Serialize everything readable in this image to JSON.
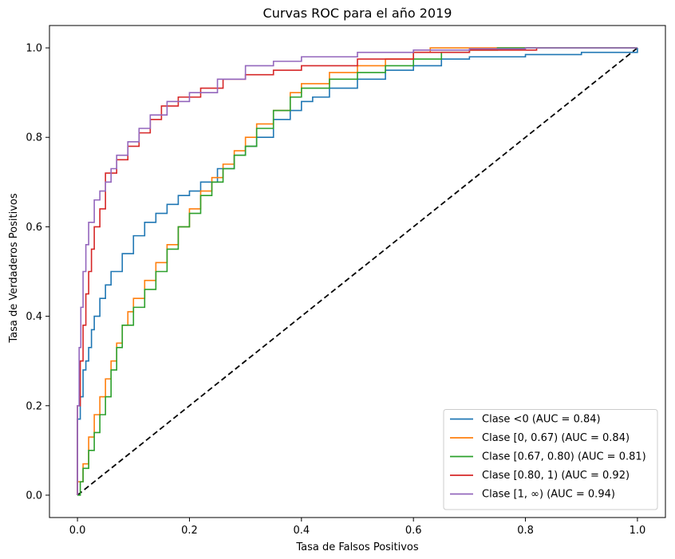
{
  "chart_data": {
    "type": "line",
    "title": "Curvas ROC para el año 2019",
    "xlabel": "Tasa de Falsos Positivos",
    "ylabel": "Tasa de Verdaderos Positivos",
    "xlim": [
      -0.05,
      1.05
    ],
    "ylim": [
      -0.05,
      1.05
    ],
    "xticks": [
      0.0,
      0.2,
      0.4,
      0.6,
      0.8,
      1.0
    ],
    "yticks": [
      0.0,
      0.2,
      0.4,
      0.6,
      0.8,
      1.0
    ],
    "xtick_labels": [
      "0.0",
      "0.2",
      "0.4",
      "0.6",
      "0.8",
      "1.0"
    ],
    "ytick_labels": [
      "0.0",
      "0.2",
      "0.4",
      "0.6",
      "0.8",
      "1.0"
    ],
    "grid": false,
    "legend_position": "lower-right",
    "diagonal": {
      "x": [
        0,
        1
      ],
      "y": [
        0,
        1
      ],
      "color": "#000000",
      "style": "dashed"
    },
    "series": [
      {
        "name": "Clase <0 (AUC = 0.84)",
        "color": "#1f77b4",
        "points": [
          [
            0,
            0
          ],
          [
            0,
            0.17
          ],
          [
            0.005,
            0.22
          ],
          [
            0.01,
            0.28
          ],
          [
            0.015,
            0.3
          ],
          [
            0.02,
            0.33
          ],
          [
            0.025,
            0.37
          ],
          [
            0.03,
            0.4
          ],
          [
            0.04,
            0.44
          ],
          [
            0.05,
            0.47
          ],
          [
            0.06,
            0.5
          ],
          [
            0.08,
            0.54
          ],
          [
            0.1,
            0.58
          ],
          [
            0.12,
            0.61
          ],
          [
            0.14,
            0.63
          ],
          [
            0.16,
            0.65
          ],
          [
            0.18,
            0.67
          ],
          [
            0.2,
            0.68
          ],
          [
            0.22,
            0.7
          ],
          [
            0.25,
            0.73
          ],
          [
            0.28,
            0.76
          ],
          [
            0.3,
            0.78
          ],
          [
            0.32,
            0.8
          ],
          [
            0.35,
            0.84
          ],
          [
            0.38,
            0.86
          ],
          [
            0.4,
            0.88
          ],
          [
            0.42,
            0.89
          ],
          [
            0.45,
            0.91
          ],
          [
            0.5,
            0.93
          ],
          [
            0.55,
            0.95
          ],
          [
            0.6,
            0.96
          ],
          [
            0.65,
            0.975
          ],
          [
            0.7,
            0.98
          ],
          [
            0.8,
            0.985
          ],
          [
            0.9,
            0.99
          ],
          [
            1,
            1
          ]
        ]
      },
      {
        "name": "Clase [0, 0.67) (AUC = 0.84)",
        "color": "#ff7f0e",
        "points": [
          [
            0,
            0
          ],
          [
            0,
            0.03
          ],
          [
            0.01,
            0.07
          ],
          [
            0.02,
            0.13
          ],
          [
            0.03,
            0.18
          ],
          [
            0.04,
            0.22
          ],
          [
            0.05,
            0.26
          ],
          [
            0.06,
            0.3
          ],
          [
            0.07,
            0.34
          ],
          [
            0.08,
            0.38
          ],
          [
            0.09,
            0.41
          ],
          [
            0.1,
            0.44
          ],
          [
            0.12,
            0.48
          ],
          [
            0.14,
            0.52
          ],
          [
            0.16,
            0.56
          ],
          [
            0.18,
            0.6
          ],
          [
            0.2,
            0.64
          ],
          [
            0.22,
            0.68
          ],
          [
            0.24,
            0.71
          ],
          [
            0.26,
            0.74
          ],
          [
            0.28,
            0.77
          ],
          [
            0.3,
            0.8
          ],
          [
            0.32,
            0.83
          ],
          [
            0.35,
            0.86
          ],
          [
            0.38,
            0.9
          ],
          [
            0.4,
            0.92
          ],
          [
            0.45,
            0.945
          ],
          [
            0.5,
            0.96
          ],
          [
            0.55,
            0.975
          ],
          [
            0.6,
            0.99
          ],
          [
            0.63,
            1
          ],
          [
            1,
            1
          ]
        ]
      },
      {
        "name": "Clase [0.67, 0.80) (AUC = 0.81)",
        "color": "#2ca02c",
        "points": [
          [
            0,
            0
          ],
          [
            0.005,
            0.03
          ],
          [
            0.01,
            0.06
          ],
          [
            0.02,
            0.1
          ],
          [
            0.03,
            0.14
          ],
          [
            0.04,
            0.18
          ],
          [
            0.05,
            0.22
          ],
          [
            0.06,
            0.28
          ],
          [
            0.07,
            0.33
          ],
          [
            0.08,
            0.38
          ],
          [
            0.1,
            0.42
          ],
          [
            0.12,
            0.46
          ],
          [
            0.14,
            0.5
          ],
          [
            0.16,
            0.55
          ],
          [
            0.18,
            0.6
          ],
          [
            0.2,
            0.63
          ],
          [
            0.22,
            0.67
          ],
          [
            0.24,
            0.7
          ],
          [
            0.26,
            0.73
          ],
          [
            0.28,
            0.76
          ],
          [
            0.3,
            0.78
          ],
          [
            0.32,
            0.82
          ],
          [
            0.35,
            0.86
          ],
          [
            0.38,
            0.89
          ],
          [
            0.4,
            0.91
          ],
          [
            0.45,
            0.93
          ],
          [
            0.5,
            0.945
          ],
          [
            0.55,
            0.96
          ],
          [
            0.6,
            0.975
          ],
          [
            0.65,
            0.99
          ],
          [
            0.7,
            0.995
          ],
          [
            0.75,
            1
          ],
          [
            1,
            1
          ]
        ]
      },
      {
        "name": "Clase [0.80, 1) (AUC = 0.92)",
        "color": "#d62728",
        "points": [
          [
            0,
            0
          ],
          [
            0,
            0.2
          ],
          [
            0.005,
            0.3
          ],
          [
            0.01,
            0.38
          ],
          [
            0.015,
            0.45
          ],
          [
            0.02,
            0.5
          ],
          [
            0.025,
            0.55
          ],
          [
            0.03,
            0.6
          ],
          [
            0.04,
            0.64
          ],
          [
            0.05,
            0.67
          ],
          [
            0.05,
            0.72
          ],
          [
            0.07,
            0.75
          ],
          [
            0.09,
            0.78
          ],
          [
            0.11,
            0.81
          ],
          [
            0.13,
            0.84
          ],
          [
            0.15,
            0.87
          ],
          [
            0.18,
            0.89
          ],
          [
            0.22,
            0.91
          ],
          [
            0.26,
            0.93
          ],
          [
            0.3,
            0.94
          ],
          [
            0.35,
            0.95
          ],
          [
            0.4,
            0.96
          ],
          [
            0.5,
            0.975
          ],
          [
            0.6,
            0.99
          ],
          [
            0.7,
            0.995
          ],
          [
            0.82,
            1
          ]
        ]
      },
      {
        "name": "Clase [1, ∞) (AUC = 0.94)",
        "color": "#9467bd",
        "points": [
          [
            0,
            0
          ],
          [
            0,
            0.2
          ],
          [
            0.003,
            0.33
          ],
          [
            0.006,
            0.42
          ],
          [
            0.01,
            0.5
          ],
          [
            0.015,
            0.56
          ],
          [
            0.02,
            0.61
          ],
          [
            0.03,
            0.66
          ],
          [
            0.04,
            0.68
          ],
          [
            0.05,
            0.7
          ],
          [
            0.06,
            0.73
          ],
          [
            0.07,
            0.76
          ],
          [
            0.09,
            0.79
          ],
          [
            0.11,
            0.82
          ],
          [
            0.13,
            0.85
          ],
          [
            0.16,
            0.88
          ],
          [
            0.2,
            0.9
          ],
          [
            0.25,
            0.93
          ],
          [
            0.3,
            0.96
          ],
          [
            0.35,
            0.97
          ],
          [
            0.4,
            0.98
          ],
          [
            0.5,
            0.99
          ],
          [
            0.6,
            0.995
          ],
          [
            0.7,
            0.998
          ],
          [
            0.8,
            1
          ],
          [
            1,
            1
          ]
        ]
      }
    ]
  }
}
